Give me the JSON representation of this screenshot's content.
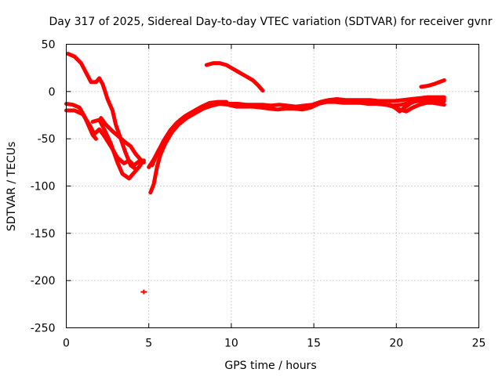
{
  "chart_data": {
    "type": "scatter",
    "title": "Day 317 of 2025, Sidereal Day-to-day VTEC variation (SDTVAR) for receiver gvnr",
    "xlabel": "GPS time / hours",
    "ylabel": "SDTVAR / TECUs",
    "xlim": [
      0,
      25
    ],
    "ylim": [
      -250,
      50
    ],
    "xticks": [
      0,
      5,
      10,
      15,
      20,
      25
    ],
    "yticks": [
      50,
      0,
      -50,
      -100,
      -150,
      -200,
      -250
    ],
    "grid": true,
    "color": "#ff0000",
    "series": [
      {
        "name": "track-1",
        "points": [
          [
            0.1,
            40
          ],
          [
            0.5,
            37
          ],
          [
            0.9,
            30
          ],
          [
            1.2,
            20
          ],
          [
            1.5,
            10
          ],
          [
            1.8,
            10
          ],
          [
            2.0,
            14
          ],
          [
            2.2,
            8
          ],
          [
            2.5,
            -8
          ],
          [
            2.8,
            -20
          ],
          [
            3.0,
            -35
          ],
          [
            3.3,
            -50
          ],
          [
            3.6,
            -65
          ],
          [
            3.9,
            -78
          ],
          [
            4.2,
            -82
          ]
        ]
      },
      {
        "name": "track-2",
        "points": [
          [
            0.0,
            -13
          ],
          [
            0.4,
            -14
          ],
          [
            0.8,
            -17
          ],
          [
            1.1,
            -26
          ],
          [
            1.4,
            -38
          ],
          [
            1.6,
            -46
          ],
          [
            1.8,
            -50
          ]
        ]
      },
      {
        "name": "track-3",
        "points": [
          [
            0.0,
            -20
          ],
          [
            0.5,
            -20
          ],
          [
            1.0,
            -24
          ],
          [
            1.4,
            -35
          ],
          [
            1.7,
            -45
          ],
          [
            2.0,
            -40
          ],
          [
            2.3,
            -47
          ],
          [
            2.7,
            -58
          ],
          [
            3.1,
            -70
          ],
          [
            3.5,
            -76
          ],
          [
            3.8,
            -73
          ],
          [
            4.1,
            -78
          ],
          [
            4.4,
            -74
          ],
          [
            4.7,
            -73
          ]
        ]
      },
      {
        "name": "track-4",
        "points": [
          [
            1.6,
            -32
          ],
          [
            2.0,
            -30
          ],
          [
            2.3,
            -40
          ],
          [
            2.7,
            -55
          ],
          [
            3.1,
            -75
          ],
          [
            3.4,
            -87
          ],
          [
            3.8,
            -92
          ],
          [
            4.1,
            -86
          ],
          [
            4.4,
            -80
          ],
          [
            4.6,
            -75
          ]
        ]
      },
      {
        "name": "track-5",
        "points": [
          [
            2.1,
            -28
          ],
          [
            2.4,
            -35
          ],
          [
            2.8,
            -42
          ],
          [
            3.2,
            -48
          ],
          [
            3.6,
            -54
          ],
          [
            3.9,
            -58
          ],
          [
            4.2,
            -66
          ],
          [
            4.5,
            -72
          ],
          [
            4.7,
            -75
          ]
        ]
      },
      {
        "name": "track-6",
        "points": [
          [
            5.1,
            -107
          ],
          [
            5.3,
            -98
          ],
          [
            5.5,
            -80
          ],
          [
            5.7,
            -67
          ],
          [
            6.0,
            -55
          ],
          [
            6.4,
            -43
          ],
          [
            6.8,
            -35
          ],
          [
            7.3,
            -28
          ],
          [
            7.8,
            -23
          ],
          [
            8.3,
            -18
          ],
          [
            8.8,
            -15
          ],
          [
            9.3,
            -13
          ],
          [
            9.8,
            -14
          ],
          [
            10.3,
            -16
          ],
          [
            10.8,
            -16
          ],
          [
            11.3,
            -16
          ],
          [
            11.8,
            -17
          ],
          [
            12.3,
            -18
          ],
          [
            12.8,
            -19
          ],
          [
            13.3,
            -18
          ],
          [
            13.8,
            -18
          ],
          [
            14.3,
            -19
          ],
          [
            14.8,
            -17
          ],
          [
            15.3,
            -13
          ],
          [
            15.8,
            -11
          ],
          [
            16.3,
            -11
          ],
          [
            16.8,
            -12
          ],
          [
            17.3,
            -12
          ],
          [
            17.8,
            -12
          ],
          [
            18.3,
            -13
          ],
          [
            18.8,
            -13
          ],
          [
            19.3,
            -14
          ],
          [
            19.8,
            -15
          ],
          [
            20.3,
            -14
          ],
          [
            20.8,
            -12
          ],
          [
            21.3,
            -10
          ],
          [
            21.8,
            -9
          ],
          [
            22.3,
            -9
          ],
          [
            22.9,
            -10
          ]
        ]
      },
      {
        "name": "track-7",
        "points": [
          [
            5.0,
            -80
          ],
          [
            5.3,
            -72
          ],
          [
            5.6,
            -62
          ],
          [
            6.0,
            -50
          ],
          [
            6.4,
            -40
          ],
          [
            6.9,
            -30
          ],
          [
            7.4,
            -24
          ],
          [
            7.9,
            -19
          ],
          [
            8.4,
            -15
          ],
          [
            8.9,
            -13
          ],
          [
            9.4,
            -12
          ],
          [
            9.9,
            -13
          ],
          [
            10.4,
            -13
          ],
          [
            10.9,
            -14
          ],
          [
            11.4,
            -14
          ],
          [
            11.9,
            -14
          ],
          [
            12.4,
            -15
          ],
          [
            12.9,
            -14
          ],
          [
            13.4,
            -15
          ],
          [
            13.9,
            -16
          ],
          [
            14.4,
            -15
          ],
          [
            14.9,
            -14
          ],
          [
            15.4,
            -11
          ],
          [
            15.9,
            -9
          ],
          [
            16.4,
            -8
          ],
          [
            16.9,
            -9
          ],
          [
            17.4,
            -9
          ],
          [
            17.9,
            -9
          ],
          [
            18.4,
            -9
          ],
          [
            18.9,
            -10
          ],
          [
            19.4,
            -10
          ],
          [
            19.9,
            -10
          ],
          [
            20.4,
            -9
          ],
          [
            20.9,
            -8
          ],
          [
            21.4,
            -7
          ],
          [
            21.9,
            -6
          ],
          [
            22.4,
            -6
          ],
          [
            22.9,
            -6
          ]
        ]
      },
      {
        "name": "track-8",
        "points": [
          [
            5.2,
            -78
          ],
          [
            5.5,
            -66
          ],
          [
            5.9,
            -52
          ],
          [
            6.3,
            -41
          ],
          [
            6.7,
            -33
          ],
          [
            7.2,
            -26
          ],
          [
            7.7,
            -21
          ],
          [
            8.2,
            -16
          ],
          [
            8.7,
            -12
          ],
          [
            9.2,
            -11
          ],
          [
            9.7,
            -11
          ]
        ]
      },
      {
        "name": "track-9",
        "points": [
          [
            8.5,
            28
          ],
          [
            8.9,
            30
          ],
          [
            9.3,
            30
          ],
          [
            9.7,
            28
          ],
          [
            10.1,
            24
          ],
          [
            10.5,
            20
          ],
          [
            10.9,
            16
          ],
          [
            11.3,
            12
          ],
          [
            11.6,
            7
          ],
          [
            11.9,
            1
          ]
        ]
      },
      {
        "name": "track-10",
        "points": [
          [
            19.6,
            -14
          ],
          [
            19.9,
            -17
          ],
          [
            20.2,
            -21
          ],
          [
            20.5,
            -17
          ],
          [
            20.9,
            -12
          ],
          [
            21.3,
            -9
          ],
          [
            21.7,
            -8
          ],
          [
            22.1,
            -7
          ],
          [
            22.5,
            -8
          ],
          [
            22.9,
            -8
          ]
        ]
      },
      {
        "name": "track-11",
        "points": [
          [
            19.0,
            -12
          ],
          [
            19.4,
            -14
          ],
          [
            19.8,
            -16
          ],
          [
            20.2,
            -19
          ],
          [
            20.6,
            -21
          ],
          [
            21.0,
            -17
          ],
          [
            21.4,
            -14
          ],
          [
            21.8,
            -12
          ],
          [
            22.2,
            -12
          ],
          [
            22.6,
            -13
          ],
          [
            22.9,
            -14
          ]
        ]
      },
      {
        "name": "track-12",
        "points": [
          [
            21.5,
            5
          ],
          [
            21.9,
            6
          ],
          [
            22.3,
            8
          ],
          [
            22.6,
            10
          ],
          [
            22.9,
            12
          ]
        ]
      }
    ],
    "outliers": [
      [
        4.7,
        -212
      ]
    ]
  }
}
